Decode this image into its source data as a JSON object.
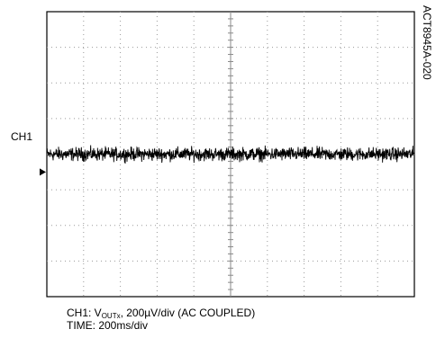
{
  "figure_id": "ACT8945A-020",
  "channel_label": "CH1",
  "caption": {
    "ch1_prefix": "CH1: V",
    "ch1_subscript": "OUTx",
    "ch1_suffix": ", 200µV/div (AC COUPLED)",
    "time": "TIME: 200ms/div"
  },
  "chart_data": {
    "type": "line",
    "title": "",
    "xlabel": "",
    "ylabel": "",
    "x_divisions": 10,
    "y_divisions": 8,
    "x_units_per_div": "200ms",
    "y_units_per_div": "200µV",
    "xlim": [
      0,
      2000
    ],
    "ylim": [
      -800,
      800
    ],
    "grid": true,
    "series": [
      {
        "name": "CH1",
        "description_value": "noise band",
        "center": 0,
        "noise_peak_to_peak": 70,
        "x_start": 0,
        "x_end": 2000,
        "color": "#000000"
      }
    ],
    "ground_marker": {
      "level": -100,
      "color": "#000000"
    }
  }
}
